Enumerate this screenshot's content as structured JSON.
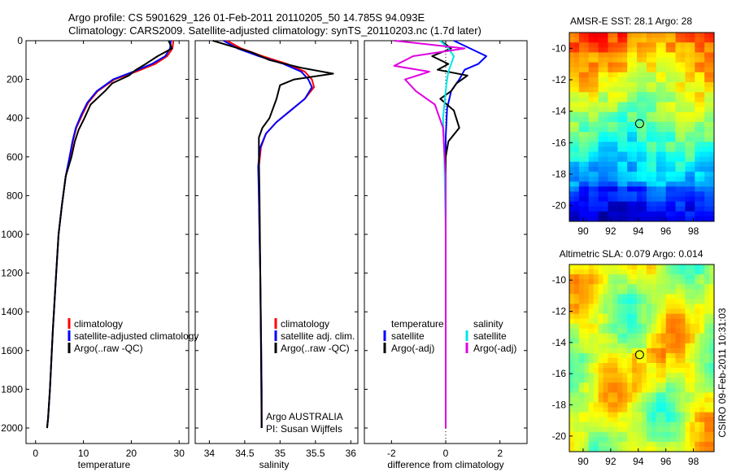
{
  "title_line1": "Argo profile: CS 5901629_126 01-Feb-2011 20110205_50 14.785S 94.093E",
  "title_line2": "Climatology: CARS2009. Satellite-adjusted climatology: synTS_20110203.nc (1.7d later)",
  "side_stamp": "CSIRO 09-Feb-2011 10:31:03",
  "colors": {
    "climatology": "#ff0000",
    "satellite": "#0000ff",
    "argo": "#000000",
    "sal_satellite": "#00e5e5",
    "sal_argo": "#e000e0"
  },
  "depth_ticks": [
    "0",
    "200",
    "400",
    "600",
    "800",
    "1000",
    "1200",
    "1400",
    "1600",
    "1800",
    "2000"
  ],
  "chart_data": [
    {
      "type": "line",
      "xlabel": "temperature",
      "xlim": [
        -2,
        32
      ],
      "ylim": [
        2080,
        0
      ],
      "y_reversed": true,
      "xticks": [
        "0",
        "10",
        "20",
        "30"
      ],
      "legend": [
        "climatology",
        "satellite-adjusted climatology",
        "Argo(..raw -QC)"
      ],
      "series": [
        {
          "name": "climatology",
          "color": "#ff0000",
          "x": [
            28.8,
            28.6,
            27.5,
            25,
            21,
            16.5,
            13,
            11,
            9.8,
            8.5,
            7.8,
            7.2,
            6.3,
            5.5,
            4.8,
            4.3,
            3.6,
            3.0,
            2.6,
            2.4
          ],
          "y": [
            0,
            40,
            80,
            120,
            160,
            200,
            260,
            320,
            380,
            450,
            520,
            600,
            700,
            850,
            1000,
            1200,
            1500,
            1800,
            1950,
            2000
          ]
        },
        {
          "name": "satellite-adjusted climatology",
          "color": "#0000ff",
          "x": [
            28.3,
            28.1,
            27.1,
            24.3,
            20.4,
            16.2,
            12.8,
            10.8,
            9.6,
            8.4,
            7.7,
            7.1,
            6.3,
            5.5,
            4.8,
            4.3,
            3.6,
            3.0,
            2.6,
            2.4
          ],
          "y": [
            0,
            40,
            80,
            120,
            160,
            200,
            260,
            320,
            380,
            450,
            520,
            600,
            700,
            850,
            1000,
            1200,
            1500,
            1800,
            1950,
            2000
          ]
        },
        {
          "name": "Argo(..raw -QC)",
          "color": "#000000",
          "x": [
            27.8,
            28.5,
            25.5,
            23,
            21,
            19.5,
            16,
            14.5,
            11.5,
            10.2,
            9,
            8.2,
            7.5,
            6.3,
            5.5,
            4.8,
            4.3,
            3.6,
            3.0,
            2.6,
            2.4
          ],
          "y": [
            0,
            40,
            80,
            120,
            150,
            180,
            220,
            260,
            330,
            400,
            460,
            520,
            600,
            700,
            850,
            1000,
            1200,
            1500,
            1800,
            1950,
            2000
          ]
        }
      ]
    },
    {
      "type": "line",
      "xlabel": "salinity",
      "xlim": [
        33.8,
        36.1
      ],
      "ylim": [
        2080,
        0
      ],
      "y_reversed": true,
      "xticks": [
        "34",
        "34.5",
        "35",
        "35.5",
        "36"
      ],
      "legend": [
        "climatology",
        "satellite adj. clim.",
        "Argo(..raw -QC)"
      ],
      "annotation_line1": "Argo AUSTRALIA",
      "annotation_line2": "PI: Susan Wijffels",
      "series": [
        {
          "name": "climatology",
          "color": "#ff0000",
          "x": [
            34.25,
            34.45,
            34.75,
            35.1,
            35.35,
            35.45,
            35.48,
            35.35,
            35.15,
            34.95,
            34.8,
            34.73,
            34.7,
            34.7,
            34.71,
            34.72,
            34.73,
            34.74,
            34.74
          ],
          "y": [
            0,
            40,
            80,
            120,
            160,
            200,
            240,
            300,
            360,
            420,
            480,
            550,
            650,
            800,
            1000,
            1200,
            1500,
            1800,
            2000
          ]
        },
        {
          "name": "satellite adj. clim.",
          "color": "#0000ff",
          "x": [
            34.2,
            34.4,
            34.7,
            35.05,
            35.3,
            35.4,
            35.45,
            35.35,
            35.15,
            34.95,
            34.8,
            34.72,
            34.69,
            34.7,
            34.71,
            34.72,
            34.73,
            34.74,
            34.74
          ],
          "y": [
            0,
            40,
            80,
            120,
            160,
            200,
            240,
            300,
            360,
            420,
            480,
            550,
            650,
            800,
            1000,
            1200,
            1500,
            1800,
            2000
          ]
        },
        {
          "name": "Argo(..raw -QC)",
          "color": "#000000",
          "x": [
            34.05,
            34.6,
            34.85,
            35.3,
            35.75,
            35.2,
            35.0,
            34.95,
            34.85,
            34.75,
            34.7,
            34.7,
            34.71,
            34.72,
            34.73,
            34.74
          ],
          "y": [
            0,
            60,
            100,
            140,
            170,
            200,
            230,
            300,
            400,
            450,
            500,
            600,
            800,
            1200,
            1600,
            2000
          ]
        }
      ]
    },
    {
      "type": "line",
      "xlabel": "difference from climatology",
      "xlim": [
        -3,
        3
      ],
      "ylim": [
        2080,
        0
      ],
      "y_reversed": true,
      "xticks": [
        "-2",
        "0",
        "2"
      ],
      "legend": [
        "temperature",
        "satellite",
        "Argo(-adj)",
        "salinity",
        "satellite",
        "Argo(-adj)"
      ],
      "series": [
        {
          "name": "satellite",
          "group": "temperature",
          "color": "#0000ff",
          "x": [
            0.3,
            0.9,
            1.5,
            1.2,
            0.7,
            0.5,
            0.2,
            0.05,
            0,
            0,
            0,
            0
          ],
          "y": [
            0,
            40,
            80,
            120,
            150,
            200,
            260,
            350,
            500,
            700,
            1000,
            2000
          ]
        },
        {
          "name": "Argo(-adj)",
          "group": "temperature",
          "color": "#000000",
          "x": [
            -0.2,
            0.2,
            -0.5,
            0.1,
            -0.3,
            0.8,
            0.4,
            0.2,
            -0.2,
            0.3,
            0.5,
            0.1,
            0,
            0,
            0
          ],
          "y": [
            0,
            40,
            80,
            120,
            150,
            180,
            220,
            260,
            300,
            360,
            450,
            520,
            600,
            1000,
            2000
          ]
        },
        {
          "name": "satellite",
          "group": "salinity",
          "color": "#00e5e5",
          "x": [
            -0.2,
            0.1,
            0.3,
            0.2,
            0.1,
            0.05,
            0,
            -0.1,
            -0.05,
            0,
            0,
            0
          ],
          "y": [
            0,
            40,
            80,
            120,
            160,
            200,
            260,
            400,
            600,
            1000,
            1500,
            2000
          ]
        },
        {
          "name": "Argo(-adj)",
          "group": "salinity",
          "color": "#e000e0",
          "x": [
            -1.9,
            0.7,
            -1.2,
            -1.9,
            -0.6,
            -1.5,
            -1.1,
            -0.4,
            -0.1,
            0,
            0,
            0
          ],
          "y": [
            0,
            40,
            80,
            130,
            160,
            200,
            260,
            330,
            450,
            700,
            1200,
            2000
          ]
        }
      ]
    },
    {
      "type": "heatmap",
      "title": "AMSR-E SST: 28.1 Argo: 28",
      "xlim": [
        89,
        99.5
      ],
      "ylim": [
        -21,
        -9
      ],
      "xticks": [
        "90",
        "92",
        "94",
        "96",
        "98"
      ],
      "yticks": [
        "-10",
        "-12",
        "-14",
        "-16",
        "-18",
        "-20"
      ],
      "argo_position": {
        "lon": 94.093,
        "lat": -14.785
      }
    },
    {
      "type": "heatmap",
      "title": "Altimetric SLA: 0.079 Argo: 0.014",
      "xlim": [
        89,
        99.5
      ],
      "ylim": [
        -21,
        -9
      ],
      "xticks": [
        "90",
        "92",
        "94",
        "96",
        "98"
      ],
      "yticks": [
        "-10",
        "-12",
        "-14",
        "-16",
        "-18",
        "-20"
      ],
      "argo_position": {
        "lon": 94.093,
        "lat": -14.785
      }
    }
  ]
}
